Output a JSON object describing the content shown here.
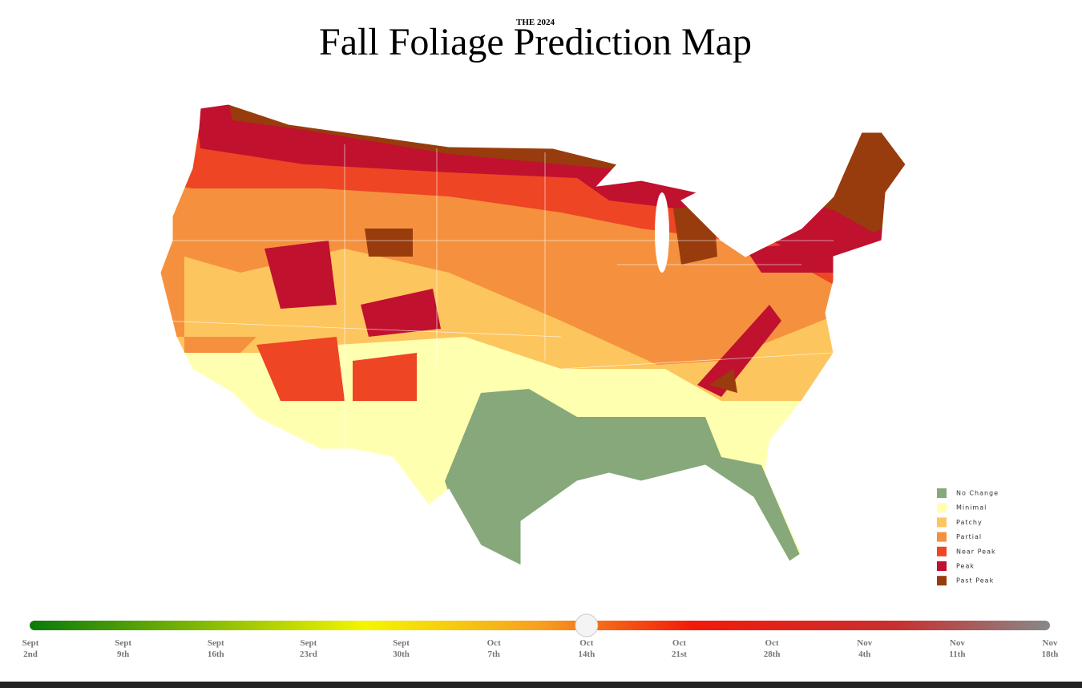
{
  "header": {
    "kicker": "THE 2024",
    "title": "Fall Foliage Prediction Map"
  },
  "legend": [
    {
      "label": "No Change",
      "color": "#86a87a"
    },
    {
      "label": "Minimal",
      "color": "#ffffb0"
    },
    {
      "label": "Patchy",
      "color": "#fdc55e"
    },
    {
      "label": "Partial",
      "color": "#f5913e"
    },
    {
      "label": "Near Peak",
      "color": "#ee4524"
    },
    {
      "label": "Peak",
      "color": "#c0112f"
    },
    {
      "label": "Past Peak",
      "color": "#983c0d"
    }
  ],
  "timeline": {
    "selected": 6,
    "dates": [
      {
        "month": "Sept",
        "day": "2nd"
      },
      {
        "month": "Sept",
        "day": "9th"
      },
      {
        "month": "Sept",
        "day": "16th"
      },
      {
        "month": "Sept",
        "day": "23rd"
      },
      {
        "month": "Sept",
        "day": "30th"
      },
      {
        "month": "Oct",
        "day": "7th"
      },
      {
        "month": "Oct",
        "day": "14th"
      },
      {
        "month": "Oct",
        "day": "21st"
      },
      {
        "month": "Oct",
        "day": "28th"
      },
      {
        "month": "Nov",
        "day": "4th"
      },
      {
        "month": "Nov",
        "day": "11th"
      },
      {
        "month": "Nov",
        "day": "18th"
      }
    ]
  }
}
